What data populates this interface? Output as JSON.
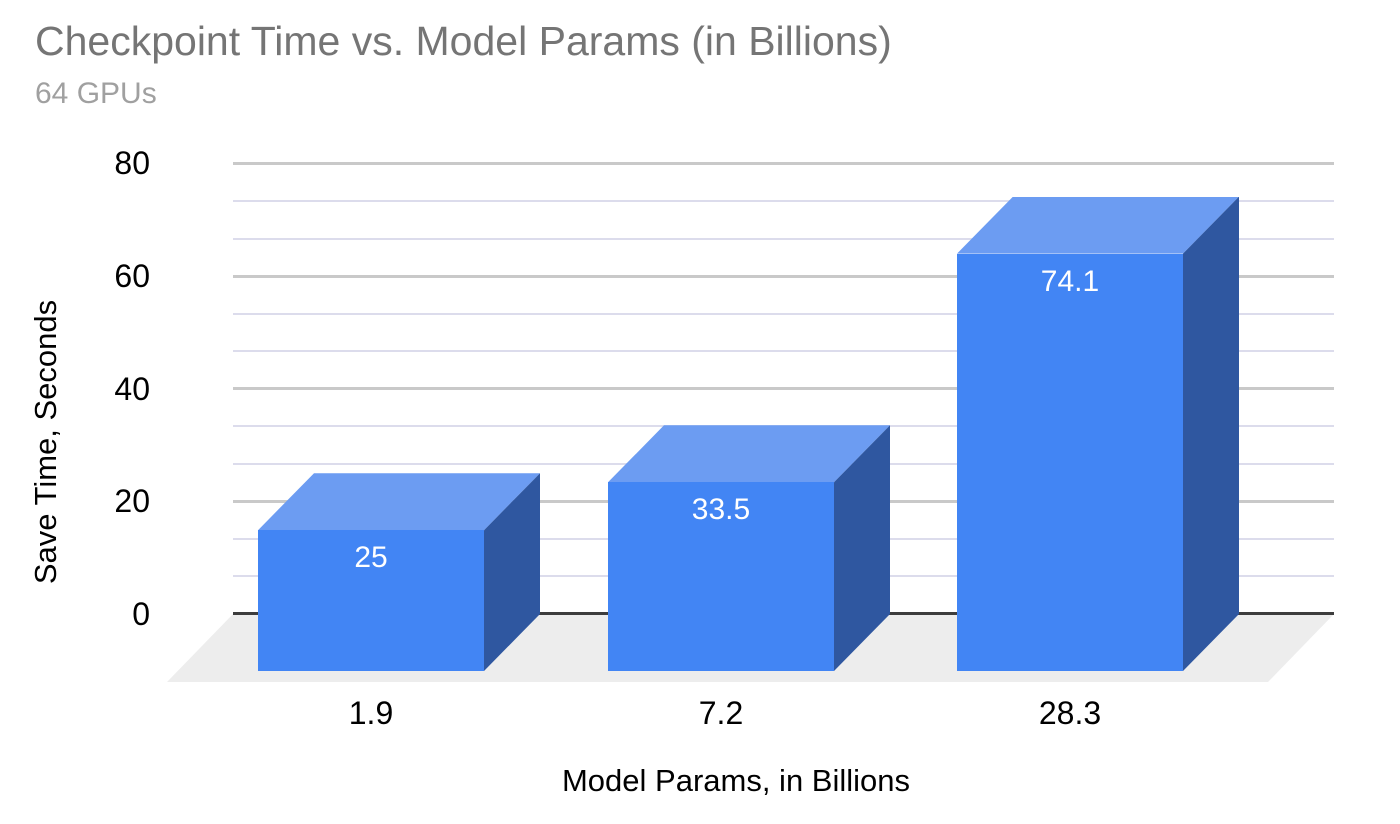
{
  "chart_data": {
    "type": "bar",
    "variant": "3d-column",
    "title": "Checkpoint Time vs. Model Params (in Billions)",
    "subtitle": "64 GPUs",
    "xlabel": "Model Params, in Billions",
    "ylabel": "Save Time, Seconds",
    "categories": [
      "1.9",
      "7.2",
      "28.3"
    ],
    "values": [
      25,
      33.5,
      74.1
    ],
    "value_labels": [
      "25",
      "33.5",
      "74.1"
    ],
    "y_ticks": [
      0,
      20,
      40,
      60,
      80
    ],
    "ylim": [
      0,
      80
    ],
    "minor_gridlines_per_major_interval": 2,
    "grid": true,
    "legend": "none",
    "colors": {
      "bar_front": "#4285f4",
      "bar_top": "#6c9cf2",
      "bar_side": "#2f57a0",
      "floor": "#ededed",
      "major_gridline": "#c9c9c9",
      "minor_gridline": "#dcdcec",
      "zero_line": "#3d3d3d",
      "title": "#757575",
      "subtitle": "#a0a0a0",
      "tick_label": "#000000",
      "data_label": "#ffffff"
    }
  }
}
